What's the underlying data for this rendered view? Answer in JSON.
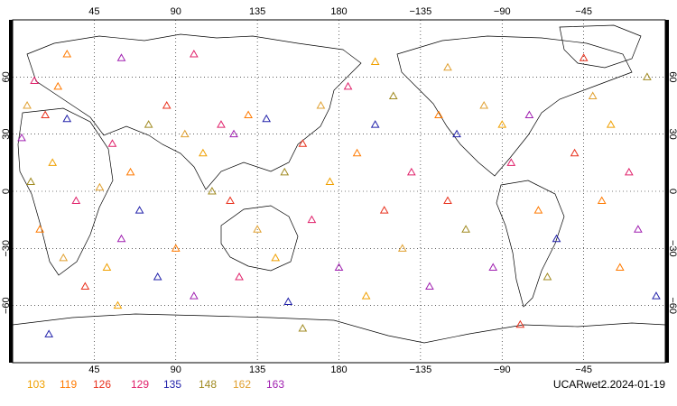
{
  "map": {
    "projection": "equirectangular",
    "lon_range": [
      0,
      360
    ],
    "lat_range": [
      -90,
      90
    ],
    "grid": true,
    "grid_style": "dotted",
    "lon_ticks": [
      {
        "value": 45,
        "label": "45"
      },
      {
        "value": 90,
        "label": "90"
      },
      {
        "value": 135,
        "label": "135"
      },
      {
        "value": 180,
        "label": "180"
      },
      {
        "value": 225,
        "label": "−135"
      },
      {
        "value": 270,
        "label": "−90"
      },
      {
        "value": 315,
        "label": "−45"
      }
    ],
    "lat_ticks": [
      {
        "value": 60,
        "label": "60"
      },
      {
        "value": 30,
        "label": "30"
      },
      {
        "value": 0,
        "label": "0"
      },
      {
        "value": -30,
        "label": "−30"
      },
      {
        "value": -60,
        "label": "−60"
      }
    ],
    "marker_shape": "triangle-open",
    "observations": [
      {
        "lon": 12,
        "lat": 58,
        "v": 3
      },
      {
        "lon": 25,
        "lat": 55,
        "v": 1
      },
      {
        "lon": 8,
        "lat": 45,
        "v": 6
      },
      {
        "lon": 18,
        "lat": 40,
        "v": 2
      },
      {
        "lon": 30,
        "lat": 38,
        "v": 4
      },
      {
        "lon": 5,
        "lat": 28,
        "v": 7
      },
      {
        "lon": 22,
        "lat": 15,
        "v": 0
      },
      {
        "lon": 10,
        "lat": 5,
        "v": 5
      },
      {
        "lon": 35,
        "lat": -5,
        "v": 3
      },
      {
        "lon": 15,
        "lat": -20,
        "v": 1
      },
      {
        "lon": 28,
        "lat": -35,
        "v": 6
      },
      {
        "lon": 40,
        "lat": -50,
        "v": 2
      },
      {
        "lon": 52,
        "lat": -40,
        "v": 0
      },
      {
        "lon": 60,
        "lat": -25,
        "v": 7
      },
      {
        "lon": 70,
        "lat": -10,
        "v": 4
      },
      {
        "lon": 65,
        "lat": 10,
        "v": 1
      },
      {
        "lon": 55,
        "lat": 25,
        "v": 3
      },
      {
        "lon": 75,
        "lat": 35,
        "v": 5
      },
      {
        "lon": 85,
        "lat": 45,
        "v": 2
      },
      {
        "lon": 95,
        "lat": 30,
        "v": 6
      },
      {
        "lon": 105,
        "lat": 20,
        "v": 0
      },
      {
        "lon": 115,
        "lat": 35,
        "v": 3
      },
      {
        "lon": 122,
        "lat": 30,
        "v": 7
      },
      {
        "lon": 130,
        "lat": 40,
        "v": 1
      },
      {
        "lon": 140,
        "lat": 38,
        "v": 4
      },
      {
        "lon": 110,
        "lat": 0,
        "v": 5
      },
      {
        "lon": 120,
        "lat": -5,
        "v": 2
      },
      {
        "lon": 135,
        "lat": -20,
        "v": 6
      },
      {
        "lon": 145,
        "lat": -35,
        "v": 0
      },
      {
        "lon": 125,
        "lat": -45,
        "v": 3
      },
      {
        "lon": 100,
        "lat": -55,
        "v": 7
      },
      {
        "lon": 90,
        "lat": -30,
        "v": 1
      },
      {
        "lon": 80,
        "lat": -45,
        "v": 4
      },
      {
        "lon": 150,
        "lat": 10,
        "v": 5
      },
      {
        "lon": 160,
        "lat": 25,
        "v": 2
      },
      {
        "lon": 170,
        "lat": 45,
        "v": 6
      },
      {
        "lon": 175,
        "lat": 5,
        "v": 0
      },
      {
        "lon": 165,
        "lat": -15,
        "v": 3
      },
      {
        "lon": 180,
        "lat": -40,
        "v": 7
      },
      {
        "lon": 190,
        "lat": 20,
        "v": 1
      },
      {
        "lon": 200,
        "lat": 35,
        "v": 4
      },
      {
        "lon": 210,
        "lat": 50,
        "v": 5
      },
      {
        "lon": 205,
        "lat": -10,
        "v": 2
      },
      {
        "lon": 215,
        "lat": -30,
        "v": 6
      },
      {
        "lon": 195,
        "lat": -55,
        "v": 0
      },
      {
        "lon": 220,
        "lat": 10,
        "v": 3
      },
      {
        "lon": 230,
        "lat": -50,
        "v": 7
      },
      {
        "lon": 235,
        "lat": 40,
        "v": 1
      },
      {
        "lon": 245,
        "lat": 30,
        "v": 4
      },
      {
        "lon": 250,
        "lat": -20,
        "v": 5
      },
      {
        "lon": 240,
        "lat": -5,
        "v": 2
      },
      {
        "lon": 260,
        "lat": 45,
        "v": 6
      },
      {
        "lon": 270,
        "lat": 35,
        "v": 0
      },
      {
        "lon": 275,
        "lat": 15,
        "v": 3
      },
      {
        "lon": 285,
        "lat": 40,
        "v": 7
      },
      {
        "lon": 290,
        "lat": -10,
        "v": 1
      },
      {
        "lon": 300,
        "lat": -25,
        "v": 4
      },
      {
        "lon": 295,
        "lat": -45,
        "v": 5
      },
      {
        "lon": 310,
        "lat": 20,
        "v": 2
      },
      {
        "lon": 320,
        "lat": 50,
        "v": 6
      },
      {
        "lon": 330,
        "lat": 35,
        "v": 0
      },
      {
        "lon": 340,
        "lat": 10,
        "v": 3
      },
      {
        "lon": 345,
        "lat": -20,
        "v": 7
      },
      {
        "lon": 335,
        "lat": -40,
        "v": 1
      },
      {
        "lon": 355,
        "lat": -55,
        "v": 4
      },
      {
        "lon": 350,
        "lat": 60,
        "v": 5
      },
      {
        "lon": 315,
        "lat": 70,
        "v": 2
      },
      {
        "lon": 240,
        "lat": 65,
        "v": 6
      },
      {
        "lon": 200,
        "lat": 68,
        "v": 0
      },
      {
        "lon": 100,
        "lat": 72,
        "v": 3
      },
      {
        "lon": 60,
        "lat": 70,
        "v": 7
      },
      {
        "lon": 30,
        "lat": 72,
        "v": 1
      },
      {
        "lon": 20,
        "lat": -75,
        "v": 4
      },
      {
        "lon": 160,
        "lat": -72,
        "v": 5
      },
      {
        "lon": 280,
        "lat": -70,
        "v": 2
      },
      {
        "lon": 48,
        "lat": 2,
        "v": 6
      },
      {
        "lon": 58,
        "lat": -60,
        "v": 0
      },
      {
        "lon": 185,
        "lat": 55,
        "v": 3
      },
      {
        "lon": 265,
        "lat": -40,
        "v": 7
      },
      {
        "lon": 325,
        "lat": -5,
        "v": 1
      },
      {
        "lon": 152,
        "lat": -58,
        "v": 4
      }
    ]
  },
  "legend": {
    "items": [
      {
        "label": "103",
        "color": "#f0a000"
      },
      {
        "label": "119",
        "color": "#ff7a00"
      },
      {
        "label": "126",
        "color": "#e8301c"
      },
      {
        "label": "129",
        "color": "#e0206a"
      },
      {
        "label": "135",
        "color": "#2222aa"
      },
      {
        "label": "148",
        "color": "#a08a20"
      },
      {
        "label": "162",
        "color": "#e0a030"
      },
      {
        "label": "163",
        "color": "#a020b0"
      }
    ]
  },
  "caption": "UCARwet2.2024-01-19"
}
